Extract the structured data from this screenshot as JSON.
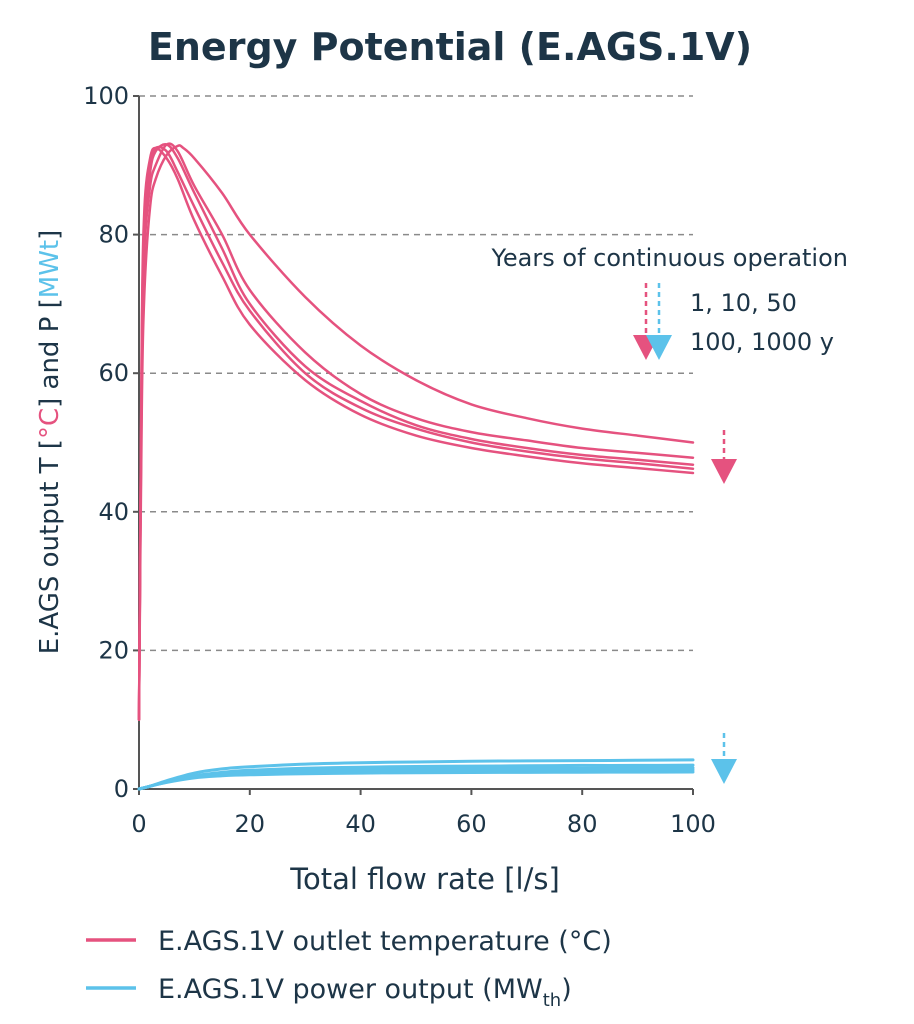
{
  "colors": {
    "temperature": "#e5527f",
    "power": "#5cc2ea",
    "text": "#1d3547"
  },
  "chart_data": {
    "type": "line",
    "title": "Energy Potential (E.AGS.1V)",
    "xlabel": "Total flow rate [l/s]",
    "ylabel": {
      "prefix": "E.AGS output T [",
      "unit_t": "°C",
      "middle": "] and P [",
      "unit_p": "MWt",
      "suffix": "]"
    },
    "xlim": [
      0,
      100
    ],
    "ylim": [
      0,
      100
    ],
    "xticks": [
      "0",
      "20",
      "40",
      "60",
      "80",
      "100"
    ],
    "yticks": [
      "0",
      "20",
      "40",
      "60",
      "80",
      "100"
    ],
    "grid": "horizontal dashed",
    "annotation": {
      "heading": "Years of continuous operation",
      "line1": "1, 10, 50",
      "line2": "100, 1000 y"
    },
    "legend": {
      "position": "bottom",
      "entries": [
        {
          "text": "E.AGS.1V outlet temperature (°C)",
          "color": "#e5527f"
        },
        {
          "text": "E.AGS.1V power output (MW",
          "sub": "th",
          "close": ")",
          "color": "#5cc2ea"
        }
      ]
    },
    "series": [
      {
        "group": "temperature",
        "x": [
          0,
          0.5,
          1,
          2,
          3,
          5,
          7,
          10,
          15,
          20,
          30,
          40,
          50,
          60,
          70,
          80,
          90,
          100
        ],
        "y": [
          10,
          60,
          78,
          87,
          90,
          93,
          92,
          87,
          80,
          72,
          63,
          57,
          53.5,
          51.5,
          50.3,
          49.2,
          48.5,
          47.8
        ]
      },
      {
        "group": "temperature",
        "x": [
          0,
          0.5,
          1,
          2,
          3,
          5,
          7,
          10,
          15,
          20,
          30,
          40,
          50,
          60,
          70,
          80,
          90,
          100
        ],
        "y": [
          10,
          62,
          80,
          89,
          92,
          93,
          91,
          86,
          78,
          70,
          61,
          56,
          52.5,
          50.5,
          49.2,
          48.2,
          47.5,
          46.8
        ]
      },
      {
        "group": "temperature",
        "x": [
          0,
          0.5,
          1,
          2,
          3,
          5,
          7,
          10,
          15,
          20,
          30,
          40,
          50,
          60,
          70,
          80,
          90,
          100
        ],
        "y": [
          10,
          64,
          82,
          90,
          92.5,
          92,
          89,
          84,
          76,
          69,
          60,
          55,
          52,
          50,
          48.7,
          47.7,
          47,
          46.2
        ]
      },
      {
        "group": "temperature",
        "x": [
          0,
          0.5,
          1,
          2,
          3,
          5,
          7,
          10,
          15,
          20,
          30,
          40,
          50,
          60,
          70,
          80,
          90,
          100
        ],
        "y": [
          10,
          66,
          84,
          91,
          92.5,
          91,
          88,
          82,
          74,
          67,
          59,
          54,
          51,
          49.2,
          48,
          47,
          46.3,
          45.6
        ]
      },
      {
        "group": "temperature",
        "x": [
          0,
          0.5,
          1,
          2,
          3,
          5,
          7,
          8,
          10,
          15,
          20,
          30,
          40,
          50,
          60,
          70,
          80,
          90,
          100
        ],
        "y": [
          10,
          55,
          72,
          84,
          88,
          91.5,
          92.8,
          92.5,
          91,
          86,
          80,
          71,
          64,
          59,
          55.5,
          53.5,
          52,
          51,
          50
        ]
      },
      {
        "group": "power",
        "x": [
          0,
          2,
          5,
          10,
          15,
          20,
          30,
          40,
          50,
          60,
          70,
          80,
          90,
          100
        ],
        "y": [
          0,
          0.4,
          1.2,
          2.3,
          2.9,
          3.2,
          3.6,
          3.8,
          3.9,
          4,
          4.05,
          4.1,
          4.15,
          4.2
        ]
      },
      {
        "group": "power",
        "x": [
          0,
          2,
          5,
          10,
          15,
          20,
          30,
          40,
          50,
          60,
          70,
          80,
          90,
          100
        ],
        "y": [
          0,
          0.4,
          1.1,
          1.9,
          2.4,
          2.7,
          3,
          3.15,
          3.25,
          3.3,
          3.35,
          3.4,
          3.4,
          3.45
        ]
      },
      {
        "group": "power",
        "x": [
          0,
          2,
          5,
          10,
          15,
          20,
          30,
          40,
          50,
          60,
          70,
          80,
          90,
          100
        ],
        "y": [
          0,
          0.4,
          1.05,
          1.8,
          2.2,
          2.45,
          2.7,
          2.85,
          2.9,
          2.95,
          3,
          3,
          3.05,
          3.05
        ]
      },
      {
        "group": "power",
        "x": [
          0,
          2,
          5,
          10,
          15,
          20,
          30,
          40,
          50,
          60,
          70,
          80,
          90,
          100
        ],
        "y": [
          0,
          0.4,
          1,
          1.7,
          2.05,
          2.25,
          2.45,
          2.55,
          2.6,
          2.65,
          2.7,
          2.7,
          2.72,
          2.75
        ]
      },
      {
        "group": "power",
        "x": [
          0,
          2,
          5,
          10,
          15,
          20,
          30,
          40,
          50,
          60,
          70,
          80,
          90,
          100
        ],
        "y": [
          0,
          0.4,
          0.95,
          1.6,
          1.9,
          2.05,
          2.2,
          2.3,
          2.35,
          2.38,
          2.4,
          2.42,
          2.44,
          2.45
        ]
      }
    ]
  }
}
